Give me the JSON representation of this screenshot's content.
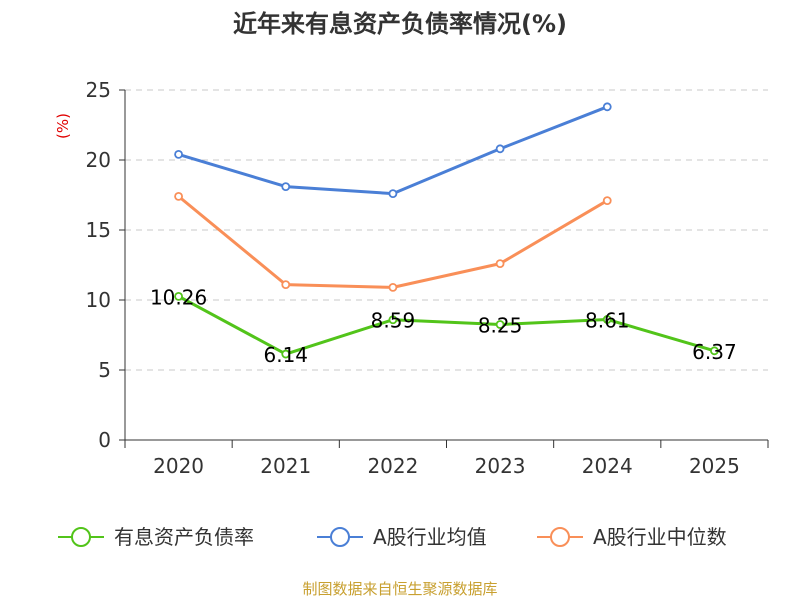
{
  "chart_data": {
    "type": "line",
    "title": "近年来有息资产负债率情况(%)",
    "ylabel": "(%)",
    "categories": [
      "2020",
      "2021",
      "2022",
      "2023",
      "2024",
      "2025"
    ],
    "y_ticks": [
      "0",
      "5",
      "10",
      "15",
      "20",
      "25"
    ],
    "ylim": [
      0,
      25
    ],
    "grid": true,
    "legend_position": "bottom",
    "series": [
      {
        "name": "有息资产负债率",
        "color": "#52c41a",
        "values": [
          10.26,
          6.14,
          8.59,
          8.25,
          8.61,
          6.37
        ],
        "labels": [
          "10.26",
          "6.14",
          "8.59",
          "8.25",
          "8.61",
          "6.37"
        ]
      },
      {
        "name": "A股行业均值",
        "color": "#4a7fd6",
        "values": [
          20.4,
          18.1,
          17.6,
          20.8,
          23.8,
          null
        ]
      },
      {
        "name": "A股行业中位数",
        "color": "#f98f58",
        "values": [
          17.4,
          11.1,
          10.9,
          12.6,
          17.1,
          null
        ]
      }
    ],
    "source": "制图数据来自恒生聚源数据库"
  }
}
